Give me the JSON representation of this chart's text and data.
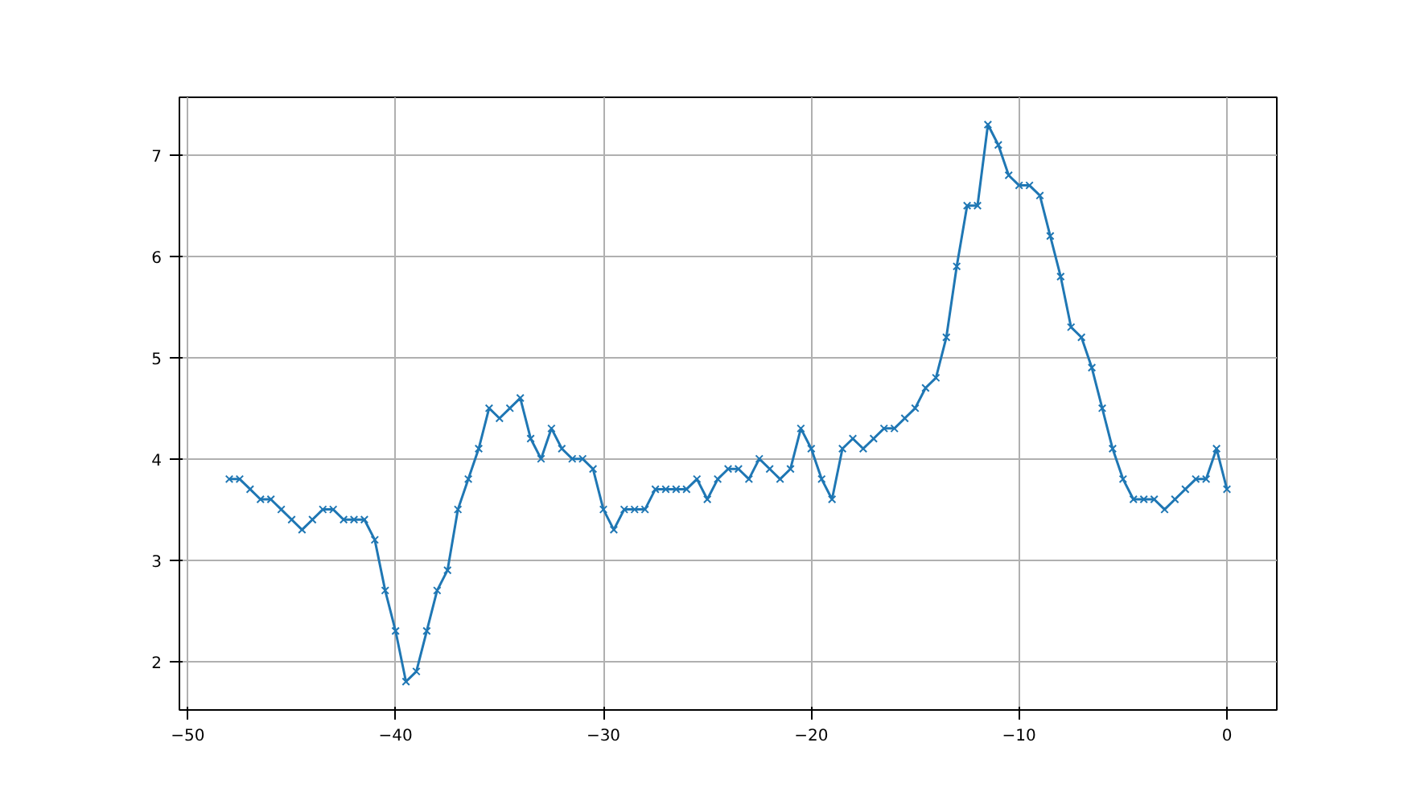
{
  "chart_data": {
    "type": "line",
    "x": [
      -48,
      -47.5,
      -47,
      -46.5,
      -46,
      -45.5,
      -45,
      -44.5,
      -44,
      -43.5,
      -43,
      -42.5,
      -42,
      -41.5,
      -41,
      -40.5,
      -40,
      -39.5,
      -39,
      -38.5,
      -38,
      -37.5,
      -37,
      -36.5,
      -36,
      -35.5,
      -35,
      -34.5,
      -34,
      -33.5,
      -33,
      -32.5,
      -32,
      -31.5,
      -31,
      -30.5,
      -30,
      -29.5,
      -29,
      -28.5,
      -28,
      -27.5,
      -27,
      -26.5,
      -26,
      -25.5,
      -25,
      -24.5,
      -24,
      -23.5,
      -23,
      -22.5,
      -22,
      -21.5,
      -21,
      -20.5,
      -20,
      -19.5,
      -19,
      -18.5,
      -18,
      -17.5,
      -17,
      -16.5,
      -16,
      -15.5,
      -15,
      -14.5,
      -14,
      -13.5,
      -13,
      -12.5,
      -12,
      -11.5,
      -11,
      -10.5,
      -10,
      -9.5,
      -9,
      -8.5,
      -8,
      -7.5,
      -7,
      -6.5,
      -6,
      -5.5,
      -5,
      -4.5,
      -4,
      -3.5,
      -3,
      -2.5,
      -2,
      -1.5,
      -1,
      -0.5,
      0
    ],
    "series": [
      {
        "color": "#1f77b4",
        "values": [
          3.8,
          3.8,
          3.7,
          3.6,
          3.6,
          3.5,
          3.4,
          3.3,
          3.4,
          3.5,
          3.5,
          3.4,
          3.4,
          3.4,
          3.2,
          2.7,
          2.3,
          1.8,
          1.9,
          2.3,
          2.7,
          2.9,
          3.5,
          3.8,
          4.1,
          4.5,
          4.4,
          4.5,
          4.6,
          4.2,
          4.0,
          4.3,
          4.1,
          4.0,
          4.0,
          3.9,
          3.5,
          3.3,
          3.5,
          3.5,
          3.5,
          3.7,
          3.7,
          3.7,
          3.7,
          3.8,
          3.6,
          3.8,
          3.9,
          3.9,
          3.8,
          4.0,
          3.9,
          3.8,
          3.9,
          4.3,
          4.1,
          3.8,
          3.6,
          4.1,
          4.2,
          4.1,
          4.2,
          4.3,
          4.3,
          4.4,
          4.5,
          4.7,
          4.8,
          5.2,
          5.9,
          6.5,
          6.5,
          7.3,
          7.1,
          6.8,
          6.7,
          6.7,
          6.6,
          6.2,
          5.8,
          5.3,
          5.2,
          4.9,
          4.5,
          4.1,
          3.8,
          3.6,
          3.6,
          3.6,
          3.5,
          3.6,
          3.7,
          3.8,
          3.8,
          4.1,
          3.7
        ]
      }
    ],
    "xlim": [
      -50.4,
      2.4
    ],
    "ylim": [
      1.52,
      7.57
    ],
    "xticks": [
      -50,
      -40,
      -30,
      -20,
      -10,
      0
    ],
    "yticks": [
      2,
      3,
      4,
      5,
      6,
      7
    ],
    "grid": true,
    "marker": "cross",
    "line_style": "solid"
  }
}
